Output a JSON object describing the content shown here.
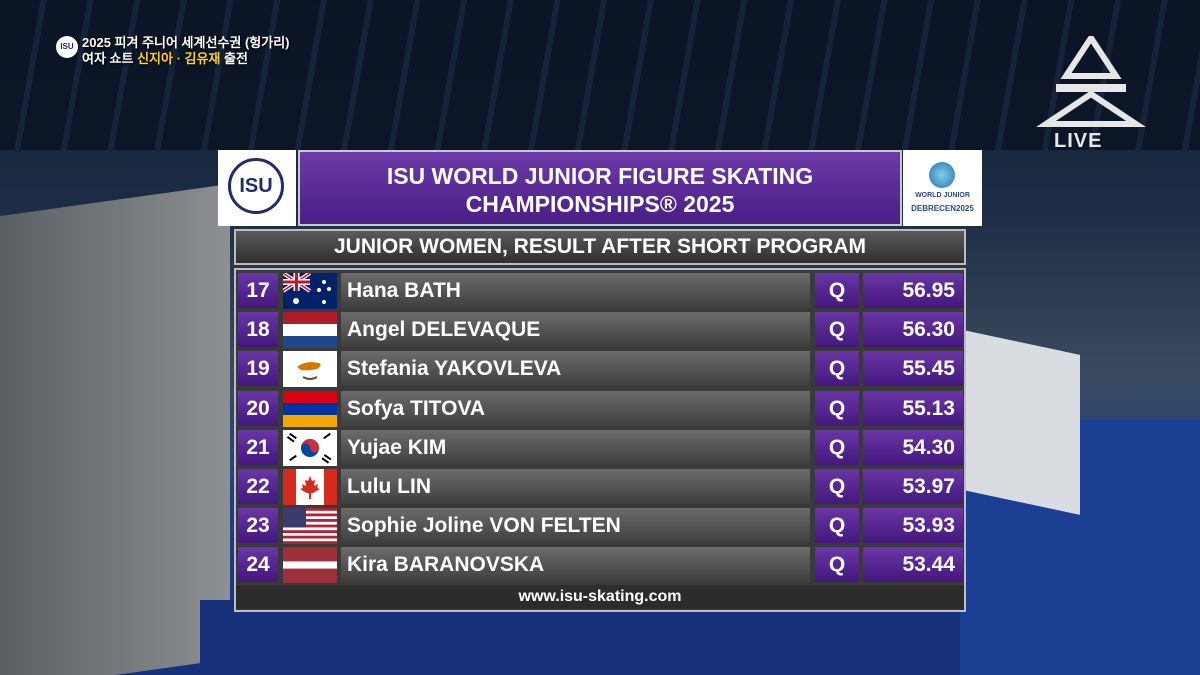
{
  "overlay": {
    "line1": "2025 피겨 주니어 세계선수권 (헝가리)",
    "line2_prefix": "여자 쇼트",
    "line2_names": "신지아 · 김유재",
    "line2_suffix": "출전",
    "logo": "ISU"
  },
  "broadcaster": {
    "badge": "LIVE"
  },
  "header": {
    "logo": "ISU",
    "title_line1": "ISU WORLD JUNIOR FIGURE SKATING",
    "title_line2": "CHAMPIONSHIPS® 2025",
    "event_logo_line1": "WORLD JUNIOR",
    "event_logo_line2": "DEBRECEN2025",
    "subtitle": "JUNIOR WOMEN, RESULT AFTER SHORT PROGRAM"
  },
  "results": {
    "rows": [
      [
        "17",
        "Hana BATH",
        "Q",
        "56.95"
      ],
      [
        "18",
        "Angel DELEVAQUE",
        "Q",
        "56.30"
      ],
      [
        "19",
        "Stefania YAKOVLEVA",
        "Q",
        "55.45"
      ],
      [
        "20",
        "Sofya TITOVA",
        "Q",
        "55.13"
      ],
      [
        "21",
        "Yujae KIM",
        "Q",
        "54.30"
      ],
      [
        "22",
        "Lulu LIN",
        "Q",
        "53.97"
      ],
      [
        "23",
        "Sophie Joline VON FELTEN",
        "Q",
        "53.93"
      ],
      [
        "24",
        "Kira BARANOVSKA",
        "Q",
        "53.44"
      ]
    ]
  },
  "footer": "www.isu-skating.com"
}
